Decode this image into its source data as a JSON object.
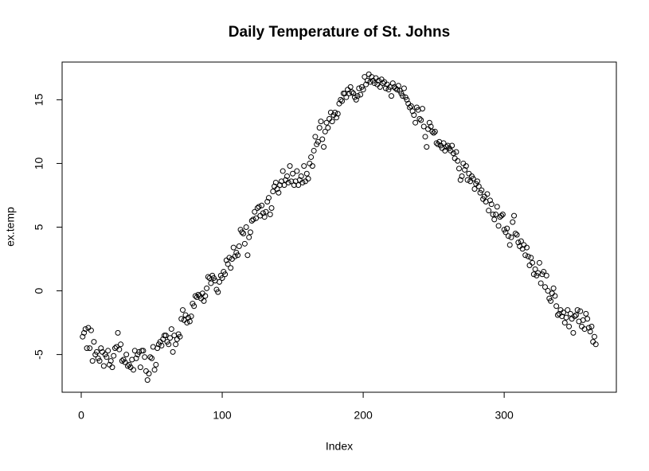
{
  "chart_data": {
    "type": "scatter",
    "title": "Daily Temperature of St. Johns",
    "x_label": "Index",
    "y_label": "ex.temp",
    "color": "#000000",
    "marker": "open-circle",
    "xlim": [
      -13.56,
      379.56
    ],
    "ylim": [
      -7.96,
      17.96
    ],
    "xticks": [
      0,
      100,
      200,
      300
    ],
    "yticks": [
      -5,
      0,
      5,
      10,
      15
    ],
    "x": [
      1,
      2,
      3,
      4,
      5,
      6,
      7,
      8,
      9,
      10,
      11,
      12,
      13,
      14,
      15,
      16,
      17,
      18,
      19,
      20,
      21,
      22,
      23,
      24,
      25,
      26,
      27,
      28,
      29,
      30,
      31,
      32,
      33,
      34,
      35,
      36,
      37,
      38,
      39,
      40,
      41,
      42,
      43,
      44,
      45,
      46,
      47,
      48,
      49,
      50,
      51,
      52,
      53,
      54,
      55,
      56,
      57,
      58,
      59,
      60,
      61,
      62,
      63,
      64,
      65,
      66,
      67,
      68,
      69,
      70,
      71,
      72,
      73,
      74,
      75,
      76,
      77,
      78,
      79,
      80,
      81,
      82,
      83,
      84,
      85,
      86,
      87,
      88,
      89,
      90,
      91,
      92,
      93,
      94,
      95,
      96,
      97,
      98,
      99,
      100,
      101,
      102,
      103,
      104,
      105,
      106,
      107,
      108,
      109,
      110,
      111,
      112,
      113,
      114,
      115,
      116,
      117,
      118,
      119,
      120,
      121,
      122,
      123,
      124,
      125,
      126,
      127,
      128,
      129,
      130,
      131,
      132,
      133,
      134,
      135,
      136,
      137,
      138,
      139,
      140,
      141,
      142,
      143,
      144,
      145,
      146,
      147,
      148,
      149,
      150,
      151,
      152,
      153,
      154,
      155,
      156,
      157,
      158,
      159,
      160,
      161,
      162,
      163,
      164,
      165,
      166,
      167,
      168,
      169,
      170,
      171,
      172,
      173,
      174,
      175,
      176,
      177,
      178,
      179,
      180,
      181,
      182,
      183,
      184,
      185,
      186,
      187,
      188,
      189,
      190,
      191,
      192,
      193,
      194,
      195,
      196,
      197,
      198,
      199,
      200,
      201,
      202,
      203,
      204,
      205,
      206,
      207,
      208,
      209,
      210,
      211,
      212,
      213,
      214,
      215,
      216,
      217,
      218,
      219,
      220,
      221,
      222,
      223,
      224,
      225,
      226,
      227,
      228,
      229,
      230,
      231,
      232,
      233,
      234,
      235,
      236,
      237,
      238,
      239,
      240,
      241,
      242,
      243,
      244,
      245,
      246,
      247,
      248,
      249,
      250,
      251,
      252,
      253,
      254,
      255,
      256,
      257,
      258,
      259,
      260,
      261,
      262,
      263,
      264,
      265,
      266,
      267,
      268,
      269,
      270,
      271,
      272,
      273,
      274,
      275,
      276,
      277,
      278,
      279,
      280,
      281,
      282,
      283,
      284,
      285,
      286,
      287,
      288,
      289,
      290,
      291,
      292,
      293,
      294,
      295,
      296,
      297,
      298,
      299,
      300,
      301,
      302,
      303,
      304,
      305,
      306,
      307,
      308,
      309,
      310,
      311,
      312,
      313,
      314,
      315,
      316,
      317,
      318,
      319,
      320,
      321,
      322,
      323,
      324,
      325,
      326,
      327,
      328,
      329,
      330,
      331,
      332,
      333,
      334,
      335,
      336,
      337,
      338,
      339,
      340,
      341,
      342,
      343,
      344,
      345,
      346,
      347,
      348,
      349,
      350,
      351,
      352,
      353,
      354,
      355,
      356,
      357,
      358,
      359,
      360,
      361,
      362,
      363,
      364,
      365
    ],
    "values": [
      -3.6,
      -3.3,
      -3.0,
      -4.5,
      -2.9,
      -4.5,
      -3.1,
      -5.5,
      -4.0,
      -5.0,
      -4.8,
      -5.3,
      -5.5,
      -4.5,
      -4.8,
      -5.9,
      -5.0,
      -5.2,
      -4.7,
      -5.8,
      -5.5,
      -6.0,
      -5.1,
      -4.5,
      -4.4,
      -3.3,
      -4.6,
      -4.2,
      -5.5,
      -5.4,
      -5.6,
      -5.0,
      -5.9,
      -5.8,
      -6.0,
      -5.4,
      -6.2,
      -4.7,
      -5.3,
      -5.0,
      -4.8,
      -6.0,
      -4.7,
      -4.7,
      -5.2,
      -6.3,
      -7.0,
      -6.5,
      -5.2,
      -5.3,
      -4.4,
      -6.2,
      -5.8,
      -4.5,
      -4.2,
      -4.0,
      -4.3,
      -3.8,
      -3.5,
      -3.5,
      -4.0,
      -4.2,
      -3.7,
      -3.0,
      -4.8,
      -3.5,
      -4.2,
      -3.8,
      -3.4,
      -3.6,
      -2.2,
      -1.5,
      -2.3,
      -1.9,
      -2.5,
      -2.1,
      -2.4,
      -2.0,
      -1.0,
      -1.2,
      -0.4,
      -0.5,
      -0.3,
      -0.4,
      -0.6,
      -0.2,
      -0.8,
      -0.4,
      0.2,
      1.1,
      1.0,
      0.6,
      1.2,
      1.0,
      0.8,
      0.1,
      -0.1,
      0.7,
      1.2,
      1.0,
      1.5,
      1.3,
      2.4,
      2.1,
      2.6,
      1.8,
      2.5,
      3.4,
      2.7,
      3.0,
      2.8,
      3.5,
      4.8,
      4.6,
      4.5,
      3.7,
      5.0,
      2.8,
      4.2,
      4.6,
      5.5,
      5.6,
      6.2,
      5.7,
      6.5,
      6.6,
      5.9,
      6.7,
      6.1,
      5.8,
      6.2,
      7.0,
      7.3,
      6.0,
      6.5,
      7.8,
      8.2,
      8.5,
      8.0,
      7.7,
      8.3,
      8.6,
      9.4,
      8.3,
      8.7,
      9.0,
      8.5,
      9.8,
      8.6,
      9.2,
      8.3,
      8.6,
      9.4,
      8.3,
      8.7,
      9.0,
      8.5,
      9.8,
      8.6,
      9.2,
      8.8,
      10.0,
      10.5,
      9.8,
      11.0,
      12.1,
      11.5,
      11.7,
      12.8,
      13.3,
      11.9,
      11.3,
      12.5,
      13.2,
      12.8,
      13.5,
      14.0,
      13.3,
      13.8,
      14.0,
      13.6,
      13.9,
      14.7,
      15.0,
      14.9,
      15.5,
      15.5,
      15.2,
      15.8,
      15.5,
      16.0,
      15.6,
      15.5,
      15.2,
      15.0,
      15.3,
      15.9,
      15.4,
      16.0,
      15.8,
      16.8,
      16.2,
      16.5,
      17.0,
      16.4,
      16.8,
      16.5,
      16.3,
      16.7,
      16.2,
      16.5,
      16.0,
      16.6,
      16.3,
      16.4,
      15.9,
      16.2,
      15.8,
      16.0,
      15.3,
      16.3,
      16.0,
      15.9,
      15.8,
      16.1,
      15.7,
      15.5,
      15.3,
      15.9,
      15.2,
      15.0,
      14.7,
      14.4,
      14.5,
      14.1,
      13.8,
      13.2,
      14.4,
      14.2,
      13.5,
      13.4,
      14.3,
      12.9,
      12.1,
      11.3,
      12.7,
      13.2,
      12.9,
      12.5,
      12.4,
      12.5,
      11.6,
      11.5,
      11.7,
      11.4,
      11.2,
      11.6,
      11.0,
      11.3,
      11.4,
      11.2,
      11.0,
      11.4,
      10.8,
      10.4,
      10.9,
      10.2,
      9.6,
      8.7,
      9.0,
      10.0,
      9.5,
      9.8,
      8.7,
      9.2,
      8.6,
      9.0,
      8.8,
      8.0,
      8.4,
      8.6,
      8.2,
      7.7,
      7.9,
      7.2,
      7.4,
      7.0,
      7.6,
      6.3,
      7.1,
      6.8,
      6.0,
      5.6,
      6.0,
      6.6,
      5.1,
      5.8,
      5.9,
      6.0,
      4.8,
      4.6,
      4.9,
      4.3,
      3.6,
      4.2,
      5.4,
      5.9,
      4.5,
      4.4,
      3.8,
      3.5,
      3.9,
      3.3,
      3.6,
      2.8,
      3.4,
      2.7,
      2.0,
      2.6,
      2.2,
      1.3,
      1.7,
      1.2,
      1.4,
      2.2,
      0.6,
      1.3,
      1.5,
      0.3,
      1.2,
      0.0,
      -0.6,
      -0.8,
      -0.2,
      0.2,
      -0.4,
      -1.2,
      -1.9,
      -1.8,
      -1.5,
      -2.0,
      -1.7,
      -2.5,
      -2.1,
      -1.5,
      -2.8,
      -1.8,
      -2.2,
      -3.3,
      -2.0,
      -1.9,
      -1.5,
      -2.4,
      -1.6,
      -2.8,
      -2.3,
      -3.0,
      -1.8,
      -2.2,
      -2.9,
      -3.2,
      -2.8,
      -4.0,
      -3.6,
      -4.2
    ]
  }
}
